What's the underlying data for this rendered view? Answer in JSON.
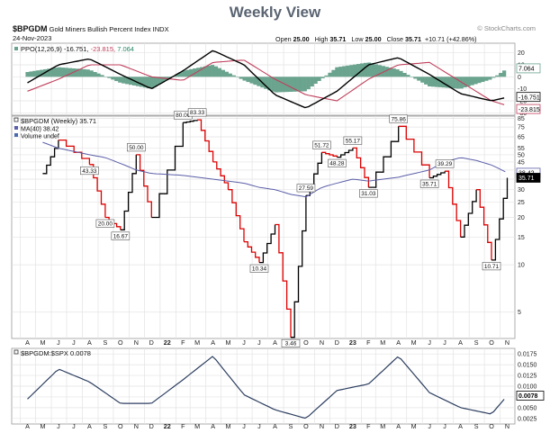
{
  "page_title": "Weekly View",
  "header": {
    "symbol": "$BPGDM",
    "name": "Gold Miners Bullish Percent Index",
    "exchange": "INDX",
    "date": "24-Nov-2023",
    "brand": "© StockCharts.com",
    "open_label": "Open",
    "open": "25.00",
    "high_label": "High",
    "high": "35.71",
    "low_label": "Low",
    "low": "25.00",
    "close_label": "Close",
    "close": "35.71",
    "change": "+10.71 (+42.86%)"
  },
  "ppo_legend": {
    "name": "PPO(12,26,9)",
    "v1": "-16.751,",
    "v2": "-23.815,",
    "v3": "7.064"
  },
  "main_legend": {
    "line1": "$BPGDM (Weekly) 35.71",
    "line2": "MA(40) 38.42",
    "line3": "Volume undef"
  },
  "ratio_legend": {
    "line1": "$BPGDM:$SPX 0.0078"
  },
  "colors": {
    "up": "#000000",
    "down": "#dd0000",
    "ma": "#5b5ea8",
    "hist": "#6aa38e",
    "signal": "#c0405c",
    "ratio": "#2c3e60",
    "grid": "#e3e3e3"
  },
  "chart_data": [
    {
      "panel": "ppo",
      "type": "line",
      "yticks": [
        "20",
        "10",
        "0",
        "-10",
        "-20",
        "-30"
      ],
      "ylim": [
        -32,
        28
      ],
      "tag_values": [
        "7.064",
        "-16.751",
        "-23.815"
      ],
      "x": [
        "2021-04",
        "2021-06",
        "2021-08",
        "2021-10",
        "2021-12",
        "2022-02",
        "2022-04",
        "2022-06",
        "2022-08",
        "2022-10",
        "2022-12",
        "2023-02",
        "2023-04",
        "2023-06",
        "2023-08",
        "2023-10",
        "2023-11"
      ],
      "series": [
        {
          "name": "PPO(12,26,9)",
          "values": [
            -5,
            10,
            15,
            2,
            -10,
            5,
            22,
            10,
            -15,
            -26,
            -12,
            10,
            16,
            2,
            -14,
            -20,
            -17
          ]
        },
        {
          "name": "signal",
          "values": [
            -12,
            -2,
            10,
            10,
            0,
            -3,
            12,
            14,
            -2,
            -15,
            -20,
            -2,
            10,
            12,
            -4,
            -20,
            -24
          ]
        },
        {
          "name": "histogram",
          "values": [
            4,
            8,
            6,
            -5,
            -10,
            5,
            10,
            -3,
            -13,
            -12,
            8,
            12,
            6,
            -8,
            -10,
            -2,
            7
          ]
        }
      ]
    },
    {
      "panel": "price",
      "type": "line",
      "scale": "log",
      "yticks": [
        "85",
        "75",
        "65",
        "55",
        "50",
        "45",
        "40",
        "35",
        "30",
        "25",
        "20",
        "15",
        "10",
        "5"
      ],
      "ylim": [
        3.4,
        88
      ],
      "tag_values": [
        "38.42",
        "35.71"
      ],
      "x": [
        "2021-05",
        "2021-06",
        "2021-08",
        "2021-09",
        "2021-10",
        "2021-11",
        "2021-12",
        "2022-02",
        "2022-03",
        "2022-04",
        "2022-05",
        "2022-06",
        "2022-07",
        "2022-08",
        "2022-09",
        "2022-10",
        "2022-11",
        "2022-12",
        "2023-01",
        "2023-02",
        "2023-04",
        "2023-06",
        "2023-07",
        "2023-08",
        "2023-09",
        "2023-10",
        "2023-11"
      ],
      "series": [
        {
          "name": "$BPGDM",
          "values": [
            38,
            62,
            43.33,
            20,
            16.67,
            50,
            20,
            80,
            83.33,
            45,
            30,
            14,
            10.34,
            18,
            3.46,
            27.59,
            51.72,
            48.28,
            55.17,
            31.03,
            75.86,
            35.71,
            39.29,
            15,
            30,
            10.71,
            35.71
          ]
        },
        {
          "name": "MA(40)",
          "values": [
            60,
            55,
            50,
            48,
            44,
            40,
            38,
            37,
            36,
            35,
            34,
            33,
            31,
            30,
            28,
            27,
            31,
            33,
            35,
            34,
            36,
            40,
            45,
            48,
            46,
            43,
            38.42
          ]
        }
      ],
      "labels": [
        "43.33",
        "16.67",
        "50.00",
        "20.00",
        "80.00",
        "83.33",
        "10.34",
        "3.46",
        "27.59",
        "51.72",
        "48.28",
        "55.17",
        "31.03",
        "75.86",
        "35.71",
        "39.29",
        "10.71"
      ]
    },
    {
      "panel": "ratio",
      "type": "line",
      "yticks": [
        "0.0175",
        "0.0150",
        "0.0125",
        "0.0100",
        "0.0075",
        "0.0050",
        "0.0025"
      ],
      "ylim": [
        0.0012,
        0.0188
      ],
      "tag_values": [
        "0.0078"
      ],
      "x": [
        "2021-04",
        "2021-06",
        "2021-08",
        "2021-10",
        "2021-12",
        "2022-02",
        "2022-04",
        "2022-06",
        "2022-08",
        "2022-10",
        "2022-12",
        "2023-02",
        "2023-04",
        "2023-06",
        "2023-08",
        "2023-10",
        "2023-11"
      ],
      "series": [
        {
          "name": "$BPGDM:$SPX",
          "values": [
            0.007,
            0.014,
            0.011,
            0.006,
            0.006,
            0.0115,
            0.017,
            0.008,
            0.0045,
            0.0025,
            0.009,
            0.0105,
            0.017,
            0.0085,
            0.005,
            0.0035,
            0.0078
          ]
        }
      ]
    }
  ],
  "x_axis_labels": [
    "A",
    "M",
    "J",
    "J",
    "A",
    "S",
    "O",
    "N",
    "D",
    "22",
    "F",
    "M",
    "A",
    "M",
    "J",
    "J",
    "A",
    "S",
    "O",
    "N",
    "D",
    "23",
    "F",
    "M",
    "A",
    "M",
    "J",
    "J",
    "A",
    "S",
    "O",
    "N"
  ]
}
